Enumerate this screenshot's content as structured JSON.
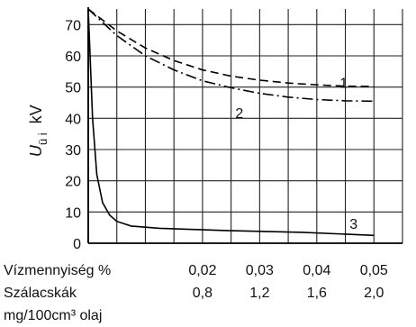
{
  "chart_data": {
    "type": "line",
    "ylabel_main": "U",
    "ylabel_sub": "ü i",
    "ylabel_unit": "kV",
    "ylim": [
      0,
      75
    ],
    "yticks": [
      0,
      10,
      20,
      30,
      40,
      50,
      60,
      70
    ],
    "grid": true,
    "x_row1_label": "Vízmennyiség %",
    "x_row1_ticks": [
      "0,02",
      "0,03",
      "0,04",
      "0,05"
    ],
    "x_row2_label": "Szálacskák",
    "x_row2_ticks": [
      "0,8",
      "1,2",
      "1,6",
      "2,0"
    ],
    "x_row3_label": "mg/100cm³ olaj",
    "xlim": [
      0,
      2.2
    ],
    "series": [
      {
        "name": "1",
        "style": "dashed",
        "x": [
          0,
          0.2,
          0.4,
          0.6,
          0.8,
          1.0,
          1.2,
          1.4,
          1.6,
          1.8,
          2.0
        ],
        "y": [
          75,
          68,
          62.5,
          58.5,
          55.5,
          53.5,
          52.2,
          51.3,
          50.7,
          50.3,
          50.2
        ]
      },
      {
        "name": "2",
        "style": "dash-dot",
        "x": [
          0,
          0.2,
          0.4,
          0.6,
          0.8,
          1.0,
          1.2,
          1.4,
          1.6,
          1.8,
          2.0
        ],
        "y": [
          75,
          66.5,
          60,
          55.5,
          52,
          49.8,
          48,
          46.8,
          46,
          45.6,
          45.5
        ]
      },
      {
        "name": "3",
        "style": "solid",
        "x": [
          0,
          0.03,
          0.06,
          0.1,
          0.15,
          0.2,
          0.3,
          0.5,
          1.0,
          1.5,
          2.0
        ],
        "y": [
          75,
          40,
          22,
          13,
          9,
          7,
          5.5,
          4.8,
          4,
          3.5,
          2.5
        ]
      }
    ]
  }
}
